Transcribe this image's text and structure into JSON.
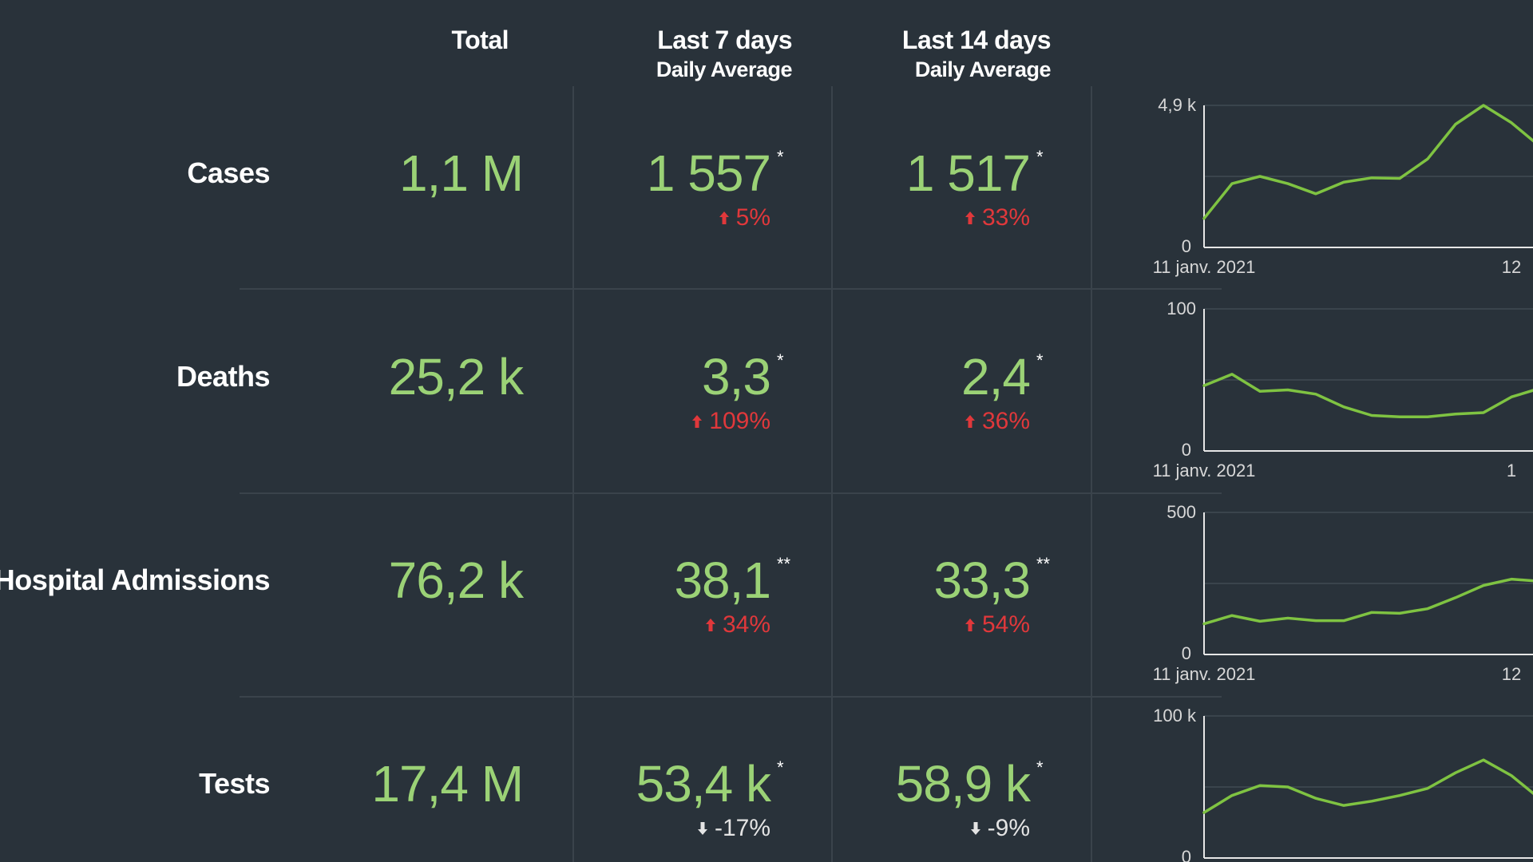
{
  "headers": {
    "total": "Total",
    "last7": "Last 7 days",
    "last7_sub": "Daily Average",
    "last14": "Last 14 days",
    "last14_sub": "Daily Average"
  },
  "colors": {
    "background": "#29323a",
    "value": "#9bd276",
    "increase": "#e0383b",
    "decrease": "#e4e4e4",
    "line": "#7fc342"
  },
  "rows": [
    {
      "label": "Cases",
      "total": "1,1 M",
      "last7": {
        "value": "1 557",
        "mark": "*",
        "change": "5%",
        "direction": "up"
      },
      "last14": {
        "value": "1 517",
        "mark": "*",
        "change": "33%",
        "direction": "up"
      }
    },
    {
      "label": "Deaths",
      "total": "25,2 k",
      "last7": {
        "value": "3,3",
        "mark": "*",
        "change": "109%",
        "direction": "up"
      },
      "last14": {
        "value": "2,4",
        "mark": "*",
        "change": "36%",
        "direction": "up"
      }
    },
    {
      "label": "Hospital Admissions",
      "total": "76,2 k",
      "last7": {
        "value": "38,1",
        "mark": "**",
        "change": "34%",
        "direction": "up"
      },
      "last14": {
        "value": "33,3",
        "mark": "**",
        "change": "54%",
        "direction": "up"
      }
    },
    {
      "label": "Tests",
      "total": "17,4 M",
      "last7": {
        "value": "53,4 k",
        "mark": "*",
        "change": "-17%",
        "direction": "down"
      },
      "last14": {
        "value": "58,9 k",
        "mark": "*",
        "change": "-9%",
        "direction": "down"
      }
    }
  ],
  "chart_data": [
    {
      "type": "line",
      "ylim": [
        0,
        4900
      ],
      "y_ticks": [
        "4,9 k",
        "0"
      ],
      "x_labels": [
        "11 janv. 2021",
        "12"
      ],
      "series": [
        {
          "values": [
            1000,
            2200,
            2450,
            2200,
            1850,
            2250,
            2400,
            2380,
            3050,
            4250,
            4900,
            4300,
            3500
          ]
        }
      ]
    },
    {
      "type": "line",
      "ylim": [
        0,
        100
      ],
      "y_ticks": [
        "100",
        "0"
      ],
      "x_labels": [
        "11 janv. 2021",
        "1"
      ],
      "series": [
        {
          "values": [
            46,
            54,
            42,
            43,
            40,
            31,
            25,
            24,
            24,
            26,
            27,
            38,
            44
          ]
        }
      ]
    },
    {
      "type": "line",
      "ylim": [
        0,
        500
      ],
      "y_ticks": [
        "500",
        "0"
      ],
      "x_labels": [
        "11 janv. 2021",
        "12 "
      ],
      "series": [
        {
          "values": [
            108,
            137,
            117,
            128,
            119,
            119,
            148,
            145,
            161,
            200,
            243,
            265,
            258
          ]
        }
      ]
    },
    {
      "type": "line",
      "ylim": [
        0,
        100000
      ],
      "y_ticks": [
        "100 k",
        "0"
      ],
      "x_labels": [],
      "series": [
        {
          "values": [
            32000,
            44000,
            51000,
            50000,
            42000,
            37000,
            40000,
            44000,
            49000,
            60000,
            69000,
            58000,
            42000
          ]
        }
      ]
    }
  ]
}
